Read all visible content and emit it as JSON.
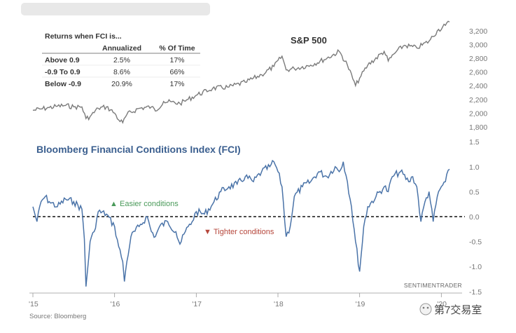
{
  "colors": {
    "sp_line": "#7a7a7a",
    "fci_line": "#4a73a8",
    "fci_title": "#3b5f8f",
    "easier": "#4a9a5a",
    "tighter": "#b5453a"
  },
  "chart_data": [
    {
      "type": "line",
      "title": "S&P 500",
      "ylim": [
        1600,
        3400
      ],
      "y_ticks": [
        "3,200",
        "3,000",
        "2,800",
        "2,600",
        "2,400",
        "2,200",
        "2,000",
        "1,800"
      ],
      "y_tick_values": [
        3200,
        3000,
        2800,
        2600,
        2400,
        2200,
        2000,
        1800
      ],
      "series": [
        {
          "name": "S&P 500",
          "x": [
            2015.0,
            2015.1,
            2015.2,
            2015.3,
            2015.4,
            2015.5,
            2015.6,
            2015.65,
            2015.7,
            2015.8,
            2015.9,
            2016.0,
            2016.05,
            2016.1,
            2016.15,
            2016.3,
            2016.45,
            2016.5,
            2016.6,
            2016.8,
            2016.9,
            2017.0,
            2017.2,
            2017.4,
            2017.6,
            2017.8,
            2017.95,
            2018.05,
            2018.1,
            2018.2,
            2018.4,
            2018.6,
            2018.75,
            2018.85,
            2018.95,
            2019.0,
            2019.1,
            2019.3,
            2019.35,
            2019.45,
            2019.55,
            2019.7,
            2019.85,
            2019.95,
            2020.05,
            2020.1
          ],
          "values": [
            2040,
            2060,
            2080,
            2100,
            2110,
            2090,
            2090,
            1920,
            1950,
            2070,
            2090,
            2000,
            1900,
            1860,
            1980,
            2070,
            2090,
            2030,
            2170,
            2140,
            2200,
            2260,
            2360,
            2380,
            2450,
            2560,
            2680,
            2830,
            2630,
            2650,
            2700,
            2800,
            2900,
            2700,
            2400,
            2510,
            2700,
            2900,
            2760,
            2900,
            2990,
            2950,
            3050,
            3200,
            3280,
            3330
          ]
        }
      ]
    },
    {
      "type": "line",
      "title": "Bloomberg Financial Conditions Index (FCI)",
      "ylim": [
        -1.5,
        1.5
      ],
      "y_ticks": [
        "1.5",
        "1.0",
        "0.5",
        "0.0",
        "-0.5",
        "-1.0",
        "-1.5"
      ],
      "y_tick_values": [
        1.5,
        1.0,
        0.5,
        0.0,
        -0.5,
        -1.0,
        -1.5
      ],
      "x_ticks": [
        "'15",
        "'16",
        "'17",
        "'18",
        "'19",
        "'20"
      ],
      "x_tick_values": [
        2015,
        2016,
        2017,
        2018,
        2019,
        2020
      ],
      "series": [
        {
          "name": "FCI",
          "x": [
            2015.0,
            2015.05,
            2015.1,
            2015.15,
            2015.2,
            2015.3,
            2015.4,
            2015.5,
            2015.6,
            2015.63,
            2015.65,
            2015.7,
            2015.75,
            2015.8,
            2015.9,
            2016.0,
            2016.05,
            2016.1,
            2016.12,
            2016.15,
            2016.2,
            2016.3,
            2016.4,
            2016.45,
            2016.5,
            2016.55,
            2016.65,
            2016.75,
            2016.8,
            2016.9,
            2016.95,
            2017.0,
            2017.1,
            2017.2,
            2017.3,
            2017.4,
            2017.5,
            2017.6,
            2017.7,
            2017.8,
            2017.9,
            2017.95,
            2018.0,
            2018.05,
            2018.1,
            2018.15,
            2018.2,
            2018.3,
            2018.4,
            2018.5,
            2018.6,
            2018.7,
            2018.75,
            2018.8,
            2018.85,
            2018.9,
            2018.95,
            2019.0,
            2019.05,
            2019.1,
            2019.2,
            2019.3,
            2019.35,
            2019.4,
            2019.5,
            2019.6,
            2019.65,
            2019.7,
            2019.75,
            2019.8,
            2019.85,
            2019.9,
            2019.95,
            2020.0,
            2020.05,
            2020.1
          ],
          "values": [
            0.2,
            -0.1,
            0.3,
            0.4,
            0.3,
            0.2,
            0.35,
            0.3,
            0.15,
            -0.45,
            -1.4,
            -0.5,
            -0.3,
            0.1,
            0.05,
            -0.2,
            -0.6,
            -0.9,
            -1.3,
            -0.9,
            -0.4,
            -0.2,
            0.0,
            -0.3,
            -0.4,
            -0.2,
            -0.1,
            -0.3,
            -0.55,
            -0.2,
            -0.1,
            0.1,
            0.05,
            0.25,
            0.5,
            0.6,
            0.65,
            0.8,
            0.7,
            0.9,
            1.0,
            1.1,
            0.9,
            0.6,
            -0.4,
            -0.2,
            0.4,
            0.6,
            0.7,
            0.9,
            0.8,
            1.0,
            0.9,
            1.1,
            0.7,
            0.2,
            -0.5,
            -1.1,
            -0.2,
            0.2,
            0.4,
            0.6,
            0.5,
            0.8,
            0.9,
            0.7,
            0.8,
            0.6,
            -0.1,
            0.3,
            0.5,
            -0.1,
            0.4,
            0.6,
            0.7,
            0.95
          ]
        }
      ],
      "reference_line": 0.0,
      "annotations": [
        {
          "text": "Easier conditions",
          "marker": "▲",
          "tone": "easier"
        },
        {
          "text": "Tighter conditions",
          "marker": "▼",
          "tone": "tighter"
        }
      ],
      "watermark": "SENTIMENTRADER"
    },
    {
      "type": "table",
      "title": "Returns when FCI is...",
      "columns": [
        "",
        "Annualized",
        "% Of Time"
      ],
      "rows": [
        [
          "Above 0.9",
          "2.5%",
          "17%"
        ],
        [
          "-0.9 To 0.9",
          "8.6%",
          "66%"
        ],
        [
          "Below -0.9",
          "20.9%",
          "17%"
        ]
      ]
    }
  ],
  "source": "Source: Bloomberg",
  "wechat_label": "第7交易室"
}
